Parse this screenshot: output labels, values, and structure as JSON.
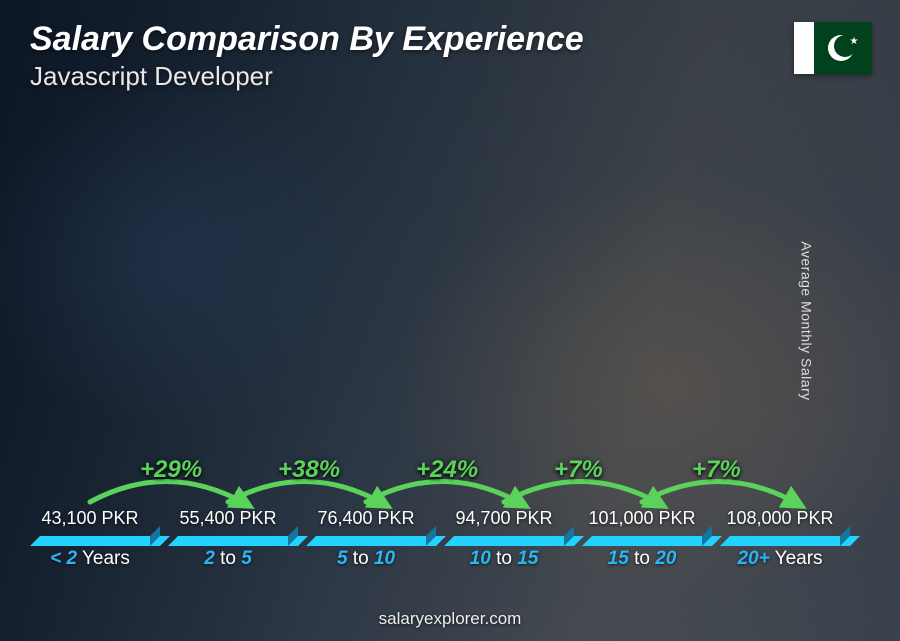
{
  "header": {
    "title": "Salary Comparison By Experience",
    "subtitle": "Javascript Developer"
  },
  "flag": {
    "country": "Pakistan",
    "green": "#01411C",
    "white": "#ffffff"
  },
  "y_axis_label": "Average Monthly Salary",
  "footer": "salaryexplorer.com",
  "chart": {
    "type": "bar",
    "currency_suffix": " PKR",
    "max_value": 108000,
    "bar_color": "#1CA8E3",
    "bar_top_color": "#4FC3F0",
    "bar_side_color": "#0E7FB5",
    "label_color": "#29B6F6",
    "arrow_color": "#5BD35B",
    "pct_color": "#5BD35B",
    "value_fontsize": 18,
    "pct_fontsize": 24,
    "title_fontsize": 34,
    "subtitle_fontsize": 26,
    "xlabel_fontsize": 19,
    "bars": [
      {
        "category_prefix": "< 2",
        "category_suffix": " Years",
        "value": 43100,
        "value_label": "43,100 PKR"
      },
      {
        "category_prefix": "2",
        "category_mid": " to ",
        "category_after": "5",
        "value": 55400,
        "value_label": "55,400 PKR",
        "pct": "+29%"
      },
      {
        "category_prefix": "5",
        "category_mid": " to ",
        "category_after": "10",
        "value": 76400,
        "value_label": "76,400 PKR",
        "pct": "+38%"
      },
      {
        "category_prefix": "10",
        "category_mid": " to ",
        "category_after": "15",
        "value": 94700,
        "value_label": "94,700 PKR",
        "pct": "+24%"
      },
      {
        "category_prefix": "15",
        "category_mid": " to ",
        "category_after": "20",
        "value": 101000,
        "value_label": "101,000 PKR",
        "pct": "+7%"
      },
      {
        "category_prefix": "20+",
        "category_suffix": " Years",
        "value": 108000,
        "value_label": "108,000 PKR",
        "pct": "+7%"
      }
    ]
  }
}
